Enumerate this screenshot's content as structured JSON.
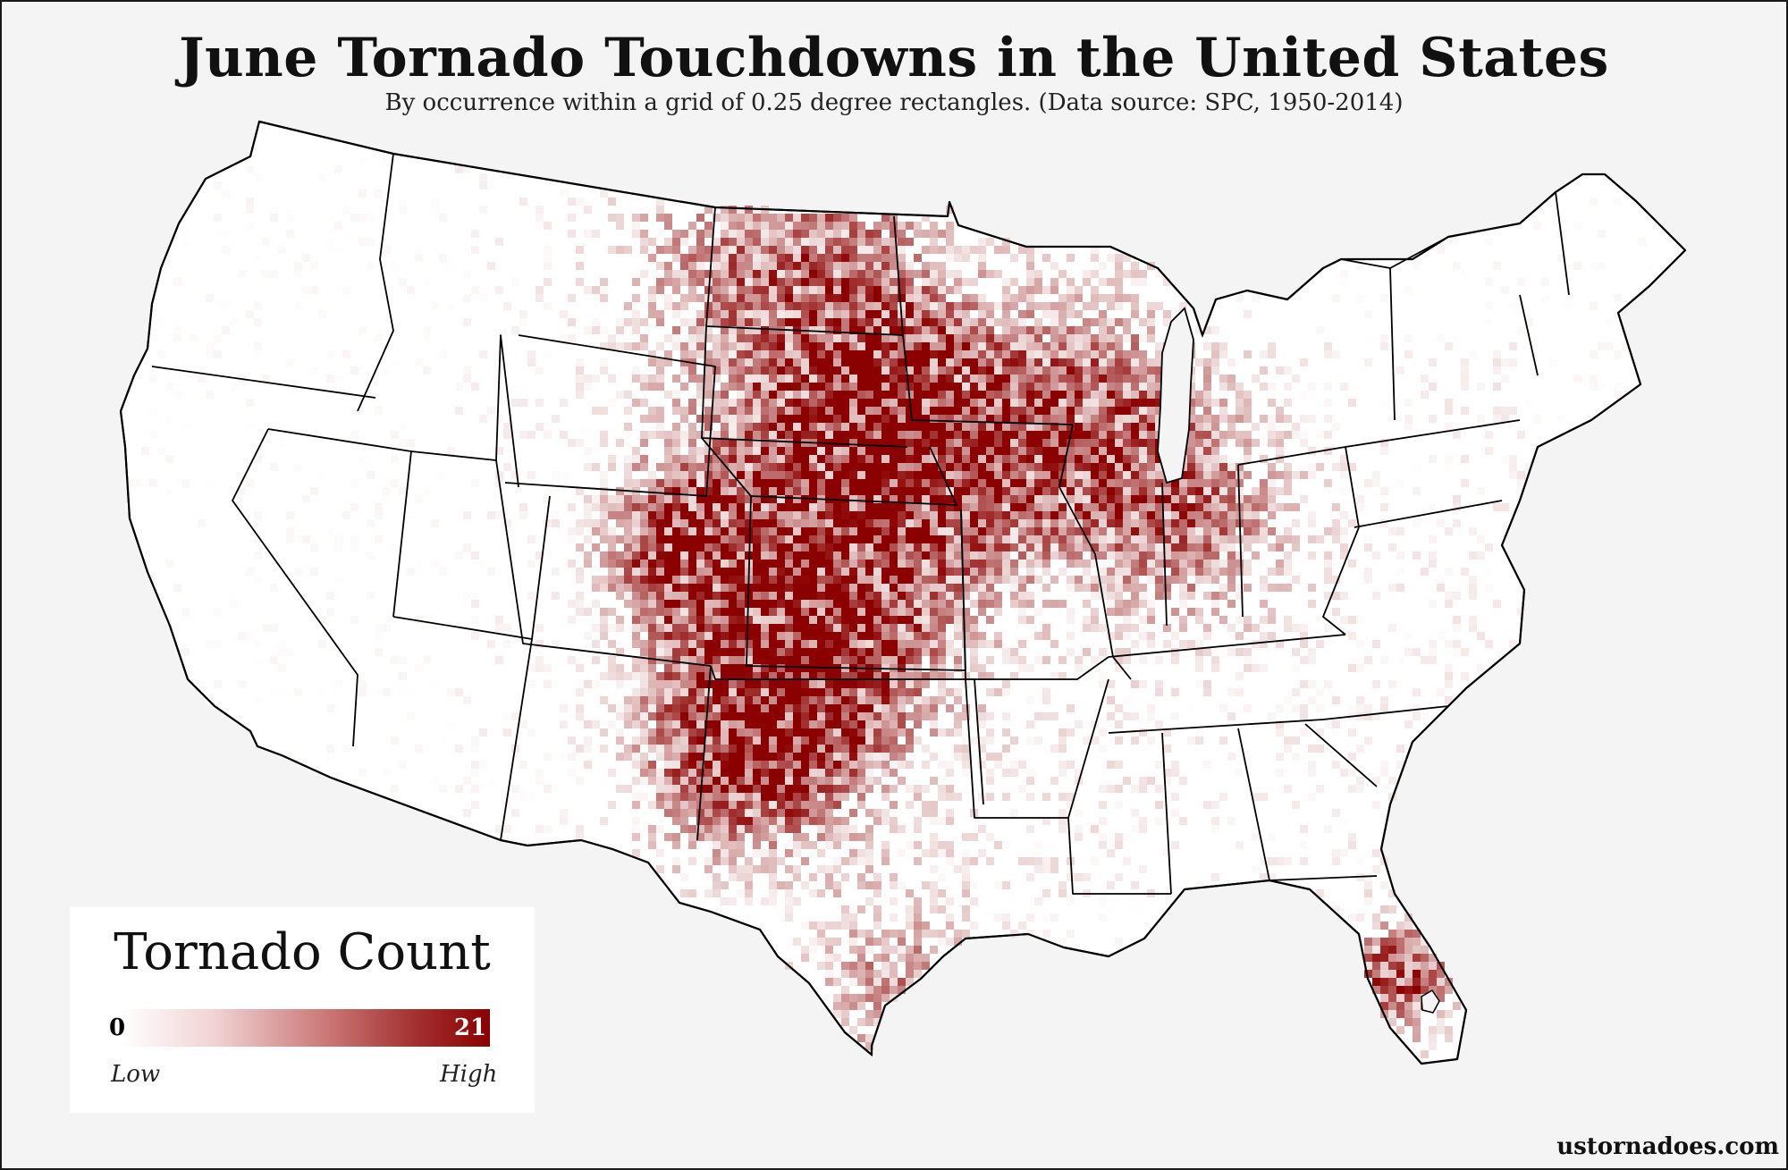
{
  "title": "June Tornado Touchdowns in the United States",
  "subtitle": "By occurrence within a grid of 0.25 degree rectangles. (Data source: SPC, 1950-2014)",
  "legend": {
    "title": "Tornado Count",
    "min": "0",
    "max": "21",
    "low_label": "Low",
    "high_label": "High"
  },
  "source_credit": "ustornadoes.com",
  "colors": {
    "background": "#f4f4f4",
    "land": "#ffffff",
    "low": "#ffffff",
    "high": "#8b0000",
    "border": "#000000"
  },
  "map": {
    "region": "Contiguous United States",
    "grid_resolution_deg": 0.25,
    "hotspots": [
      {
        "region": "Northeast Colorado",
        "level": 1.0
      },
      {
        "region": "Texas Panhandle",
        "level": 0.9
      },
      {
        "region": "Southeast South Dakota",
        "level": 0.75
      },
      {
        "region": "Nebraska",
        "level": 0.7
      },
      {
        "region": "Iowa and Southern Minnesota",
        "level": 0.7
      },
      {
        "region": "Southwest Florida",
        "level": 0.85
      },
      {
        "region": "Northern Illinois and Wisconsin",
        "level": 0.6
      },
      {
        "region": "Indiana",
        "level": 0.5
      },
      {
        "region": "Kansas",
        "level": 0.6
      },
      {
        "region": "North Dakota",
        "level": 0.6
      },
      {
        "region": "Western Oklahoma",
        "level": 0.55
      },
      {
        "region": "Texas Gulf Coast",
        "level": 0.5
      }
    ]
  }
}
